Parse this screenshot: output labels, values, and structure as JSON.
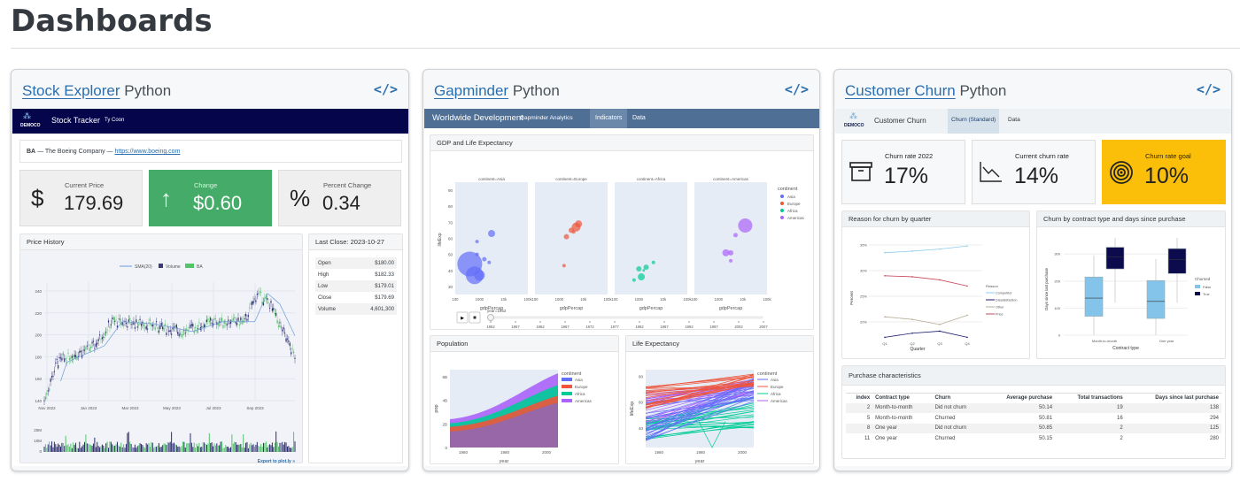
{
  "page": {
    "title": "Dashboards"
  },
  "cards": [
    {
      "link": "Stock Explorer",
      "lang": "Python",
      "code_icon": "</>"
    },
    {
      "link": "Gapminder",
      "lang": "Python",
      "code_icon": "</>"
    },
    {
      "link": "Customer Churn",
      "lang": "Python",
      "code_icon": "</>"
    }
  ],
  "stock": {
    "nav": {
      "logo": "DEMOCO",
      "title": "Stock Tracker",
      "subtitle": "Ty Coon",
      "bg": "#04054a"
    },
    "company": {
      "ticker": "BA",
      "name": " — The Boeing Company — ",
      "url": "https://www.boeing.com"
    },
    "boxes": [
      {
        "label": "Current Price",
        "value": "179.69",
        "icon": "$",
        "icon_name": "dollar-icon"
      },
      {
        "label": "Change",
        "value": "$0.60",
        "icon": "↑",
        "icon_name": "arrow-up-icon",
        "color": "#45ab68"
      },
      {
        "label": "Percent Change",
        "value": "0.34",
        "icon": "%",
        "icon_name": "percent-icon"
      }
    ],
    "price_history": {
      "title": "Price History",
      "legend": [
        "SMA(20)",
        "Volume",
        "BA"
      ],
      "y_ticks": [
        "140",
        "160",
        "180",
        "200",
        "220",
        "240"
      ],
      "x_ticks": [
        "Nov 2022",
        "Jan 2023",
        "Mar 2023",
        "May 2023",
        "Jul 2023",
        "Sep 2023"
      ],
      "vol_ticks": [
        "0",
        "10M",
        "20M"
      ],
      "export": "Export to plot.ly »"
    },
    "last_close": {
      "title": "Last Close: 2023-10-27",
      "rows": [
        [
          "Open",
          "$180.00"
        ],
        [
          "High",
          "$182.33"
        ],
        [
          "Low",
          "$179.01"
        ],
        [
          "Close",
          "$179.69"
        ],
        [
          "Volume",
          "4,601,300"
        ]
      ]
    }
  },
  "gap": {
    "nav": {
      "title": "Worldwide Development",
      "subtitle": "Gapminder Analytics",
      "tabs": [
        "Indicators",
        "Data"
      ],
      "bg": "#4f6f94"
    },
    "gdp": {
      "title": "GDP and Life Expectancy",
      "ylabel": "lifeExp",
      "xlabel": "gdpPercap",
      "y_ticks": [
        "30",
        "40",
        "50",
        "60",
        "70",
        "80",
        "90"
      ],
      "x_ticks": [
        "100",
        "1000",
        "10k",
        "100k"
      ],
      "facets": [
        "continent=Asia",
        "continent=Europe",
        "continent=Africa",
        "continent=Americas"
      ],
      "legend_title": "continent",
      "continents": [
        "Asia",
        "Europe",
        "Africa",
        "Americas"
      ],
      "colors": [
        "#636efa",
        "#ef553b",
        "#00cc96",
        "#ab63fa"
      ],
      "slider_label": "year=1952",
      "years": [
        "1952",
        "1957",
        "1962",
        "1967",
        "1972",
        "1977",
        "1982",
        "1987",
        "1992",
        "1997",
        "2002",
        "2007"
      ]
    },
    "population": {
      "title": "Population",
      "ylabel": "pop",
      "xlabel": "year",
      "y_ticks": [
        "0",
        "2B",
        "4B",
        "6B"
      ],
      "x_ticks": [
        "1960",
        "1980",
        "2000"
      ]
    },
    "life": {
      "title": "Life Expectancy",
      "ylabel": "lifeExp",
      "xlabel": "year",
      "y_ticks": [
        "40",
        "60",
        "80"
      ],
      "x_ticks": [
        "1960",
        "1980",
        "2000"
      ]
    }
  },
  "churn": {
    "nav": {
      "logo": "DEMOCO",
      "title": "Customer Churn",
      "tabs": [
        "Churn (Standard)",
        "Data"
      ]
    },
    "boxes": [
      {
        "label": "Churn rate 2022",
        "value": "17%",
        "icon_name": "archive-box-icon"
      },
      {
        "label": "Current churn rate",
        "value": "14%",
        "icon_name": "chart-down-icon"
      },
      {
        "label": "Churn rate goal",
        "value": "10%",
        "icon_name": "target-icon",
        "color": "#fbbf0a"
      }
    ],
    "reason": {
      "title": "Reason for churn by quarter",
      "ylabel": "Percent",
      "xlabel": "Quarter",
      "legend_title": "Reason",
      "quarters": [
        "Q1",
        "Q2",
        "Q3",
        "Q4"
      ],
      "y_ticks": [
        "20%",
        "25%",
        "30%",
        "35%"
      ],
      "series": [
        {
          "name": "Competitor",
          "color": "#8ecbf0",
          "values": [
            33.5,
            33.8,
            34.2,
            34.8
          ]
        },
        {
          "name": "Dissatisfaction",
          "color": "#1a1a6e",
          "values": [
            17,
            17.8,
            18.2,
            17
          ]
        },
        {
          "name": "Other",
          "color": "#b5aa95",
          "values": [
            21,
            20.5,
            19.5,
            21.3
          ]
        },
        {
          "name": "Price",
          "color": "#c8465a",
          "values": [
            29,
            28.8,
            28.2,
            27
          ]
        }
      ]
    },
    "contract": {
      "title": "Churn by contract type and days since purchase",
      "ylabel": "Days since last purchase",
      "xlabel": "Contract type",
      "categories": [
        "Month-to-month",
        "One year"
      ],
      "y_ticks": [
        "0",
        "100",
        "200",
        "300"
      ],
      "legend_title": "Churned",
      "legend": [
        "False",
        "True"
      ],
      "colors": [
        "#85c4ea",
        "#0b0b4d"
      ],
      "boxes": [
        [
          [
            70,
            137,
            215
          ],
          [
            245,
            290,
            325
          ]
        ],
        [
          [
            62,
            125,
            202
          ],
          [
            228,
            280,
            320
          ]
        ]
      ]
    },
    "table": {
      "title": "Purchase characteristics",
      "headers": [
        "index",
        "Contract type",
        "Churn",
        "Average purchase",
        "Total transactions",
        "Days since last purchase"
      ],
      "rows": [
        [
          "2",
          "Month-to-month",
          "Did not churn",
          "50.14",
          "19",
          "138"
        ],
        [
          "5",
          "Month-to-month",
          "Churned",
          "50.81",
          "16",
          "294"
        ],
        [
          "8",
          "One year",
          "Did not churn",
          "50.85",
          "2",
          "125"
        ],
        [
          "11",
          "One year",
          "Churned",
          "50.15",
          "2",
          "280"
        ]
      ]
    }
  }
}
